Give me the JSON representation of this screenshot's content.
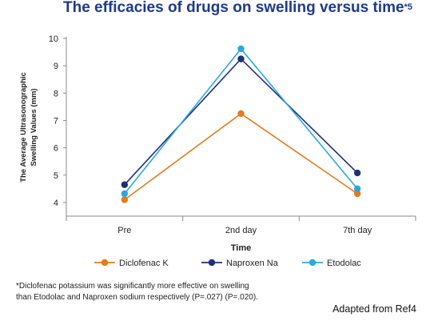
{
  "title": {
    "main": "The efficacies of drugs on swelling versus time",
    "mark": "*5"
  },
  "chart_data": {
    "type": "line",
    "categories": [
      "Pre",
      "2nd day",
      "7th day"
    ],
    "xlabel": "Time",
    "ylabel_line1": "The Average Ultrasonographic",
    "ylabel_line2": "Swelling Values (mm)",
    "ylim": [
      3.5,
      10
    ],
    "yticks": [
      "4",
      "5",
      "6",
      "7",
      "8",
      "9",
      "10"
    ],
    "grid": false,
    "legend": "bottom",
    "series": [
      {
        "name": "Diclofenac K",
        "color": "#e07b1f",
        "values": [
          4.1,
          7.25,
          4.32
        ]
      },
      {
        "name": "Naproxen Na",
        "color": "#1f2f78",
        "values": [
          4.65,
          9.25,
          5.08
        ]
      },
      {
        "name": "Etodolac",
        "color": "#2ca7e0",
        "values": [
          4.32,
          9.62,
          4.5
        ]
      }
    ]
  },
  "footnote": {
    "line1": "*Diclofenac potassium was significantly more effective on swelling",
    "line2": "than Etodolac and Naproxen sodium respectively (P=.027) (P=.020)."
  },
  "source": "Adapted from Ref4"
}
